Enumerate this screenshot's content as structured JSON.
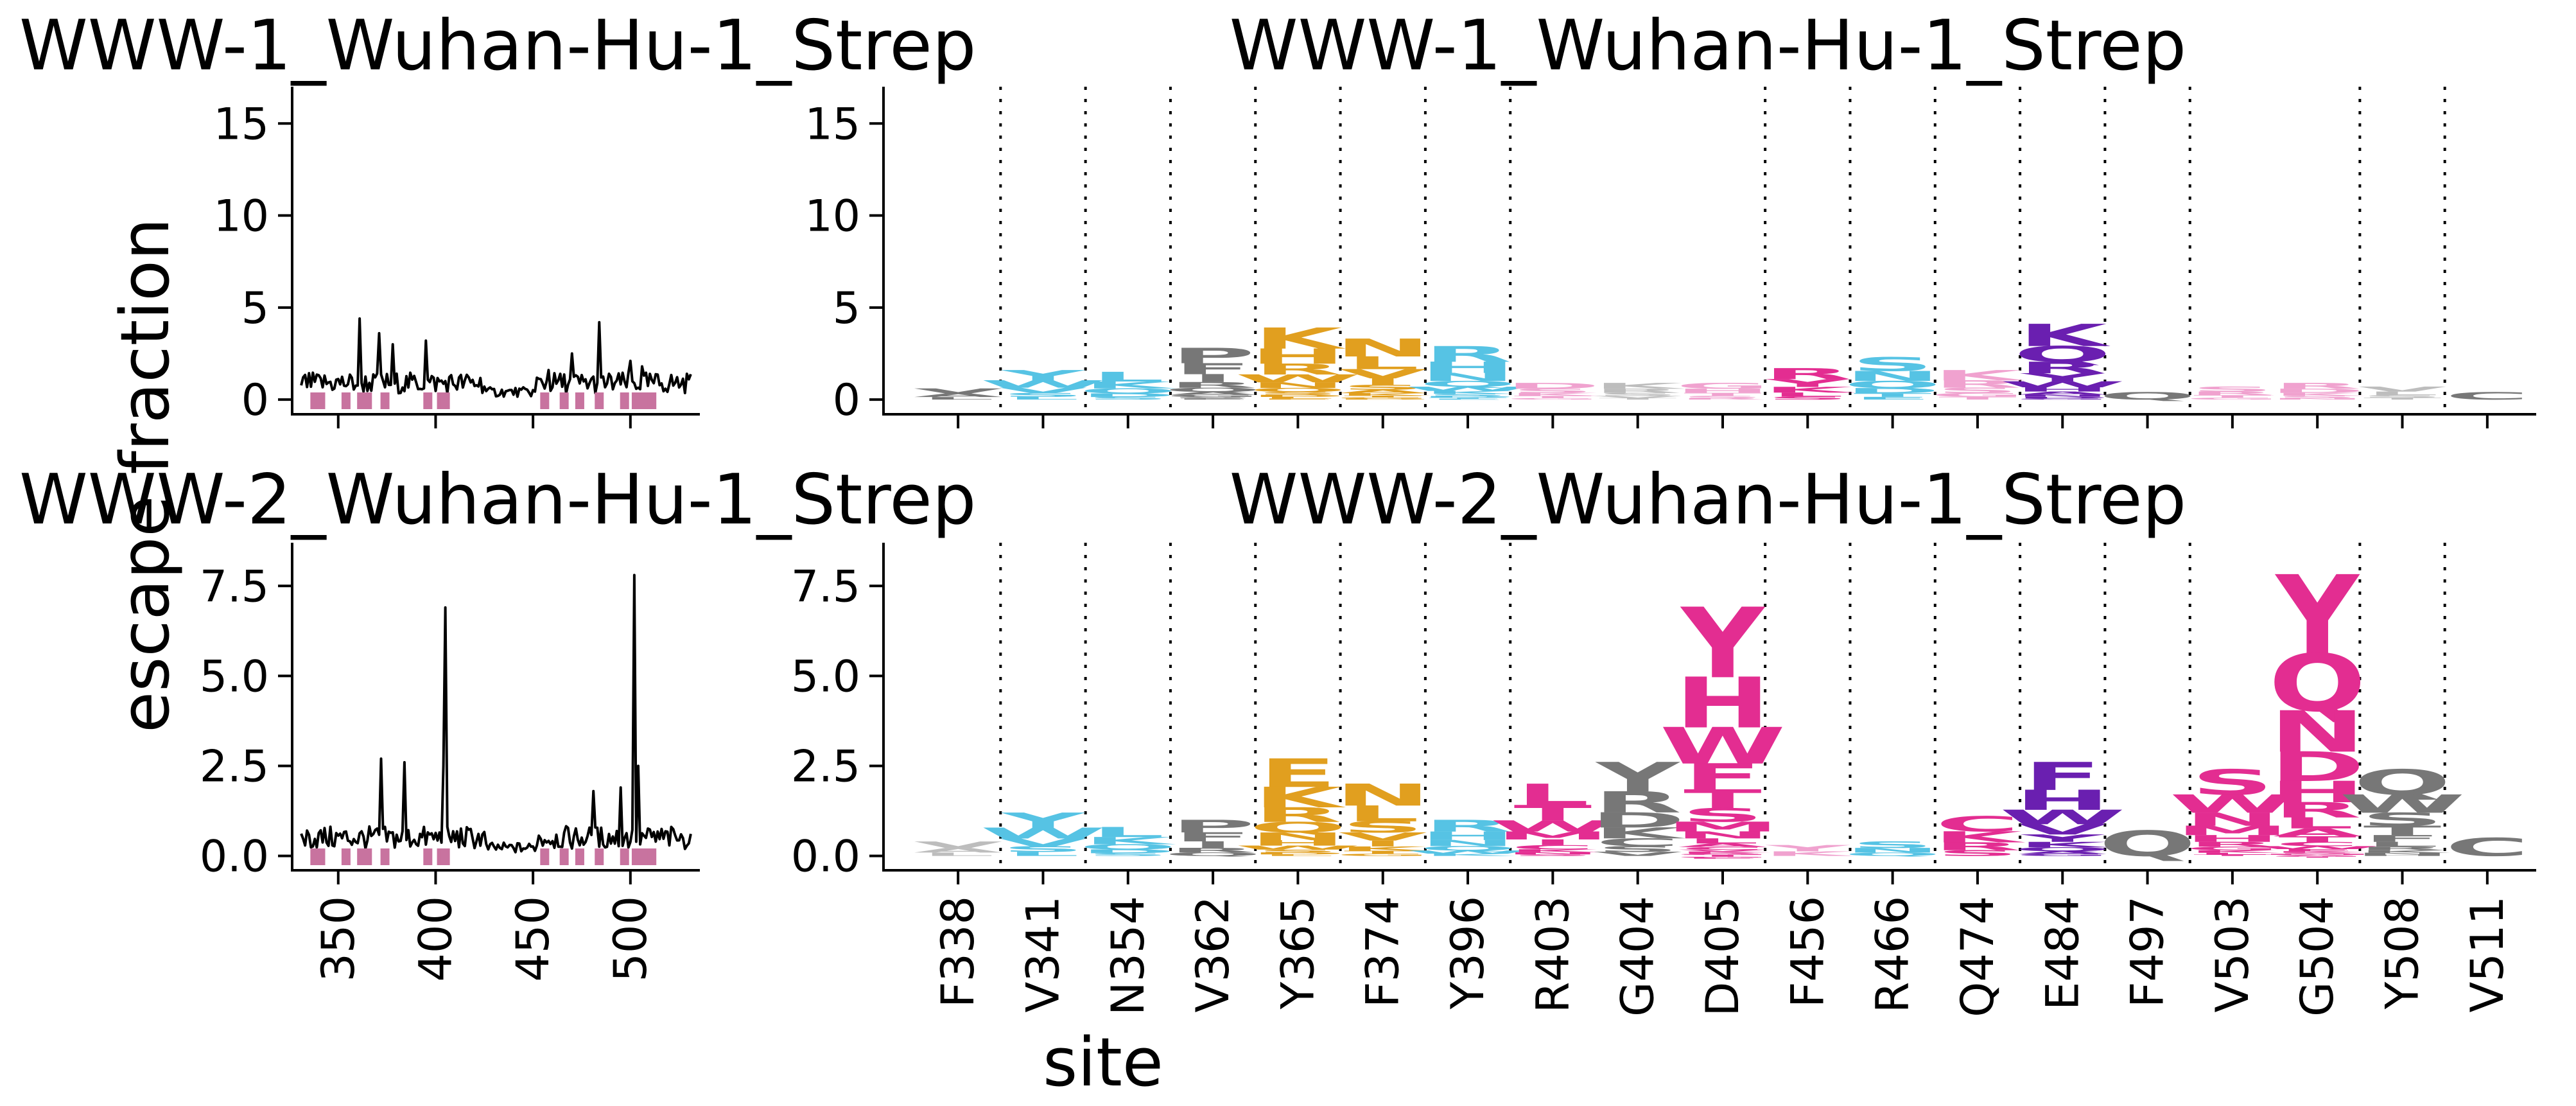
{
  "figure": {
    "ylabel": "escape fraction",
    "xlabel": "site"
  },
  "colors": {
    "line": "#000000",
    "site_marker": "#c8739f",
    "dark_gray": "#777777",
    "light_gray": "#bdbdbd",
    "cyan": "#56c3e4",
    "orange": "#e19f1f",
    "magenta": "#e32d91",
    "purple": "#6a1fb0",
    "pink_light": "#f0a2cf"
  },
  "chart_data": [
    {
      "type": "line",
      "title": "WWW-1_Wuhan-Hu-1_Strep",
      "ylim": [
        -0.8,
        17
      ],
      "yticks": [
        0,
        5,
        10,
        15
      ],
      "xlim": [
        327,
        535
      ],
      "xticks": [
        350,
        400,
        450,
        500
      ],
      "peaks": [
        [
          361,
          4.4
        ],
        [
          371,
          3.6
        ],
        [
          378,
          3.0
        ],
        [
          395,
          3.2
        ],
        [
          458,
          1.6
        ],
        [
          470,
          2.5
        ],
        [
          484,
          4.2
        ],
        [
          500,
          2.1
        ],
        [
          506,
          1.8
        ],
        [
          530,
          1.1
        ]
      ],
      "baseline": 0.9,
      "marked_sites": [
        338,
        341,
        354,
        362,
        365,
        374,
        396,
        403,
        404,
        405,
        456,
        466,
        474,
        484,
        497,
        503,
        504,
        508,
        511
      ]
    },
    {
      "type": "line",
      "title": "WWW-2_Wuhan-Hu-1_Strep",
      "ylim": [
        -0.4,
        8.7
      ],
      "yticks": [
        0,
        2.5,
        5,
        7.5
      ],
      "ytick_labels": [
        "0.0",
        "2.5",
        "5.0",
        "7.5"
      ],
      "xlim": [
        327,
        535
      ],
      "xticks": [
        350,
        400,
        450,
        500
      ],
      "peaks": [
        [
          372,
          2.7
        ],
        [
          384,
          2.6
        ],
        [
          404,
          2.5
        ],
        [
          405,
          6.9
        ],
        [
          481,
          1.8
        ],
        [
          495,
          1.9
        ],
        [
          502,
          7.8
        ],
        [
          504,
          2.5
        ],
        [
          526,
          0.6
        ]
      ],
      "baseline": 0.5,
      "marked_sites": [
        338,
        341,
        354,
        362,
        365,
        374,
        396,
        403,
        404,
        405,
        456,
        466,
        474,
        484,
        497,
        503,
        504,
        508,
        511
      ]
    },
    {
      "type": "logo",
      "title": "WWW-1_Wuhan-Hu-1_Strep",
      "ylim": [
        -0.8,
        17
      ],
      "yticks": [
        0,
        5,
        10,
        15
      ],
      "sites": [
        {
          "label": "F338",
          "height": 0.6,
          "letters": "VAL",
          "color": "dark_gray",
          "group_end": true
        },
        {
          "label": "V341",
          "height": 1.6,
          "letters": "YWVSL",
          "color": "cyan",
          "group_end": true
        },
        {
          "label": "N354",
          "height": 1.5,
          "letters": "LKQDS",
          "color": "cyan",
          "group_end": true
        },
        {
          "label": "V362",
          "height": 2.8,
          "letters": "PFIRQAGSE",
          "color": "dark_gray",
          "group_end": true
        },
        {
          "label": "Y365",
          "height": 3.9,
          "letters": "KHRWNQSDLE",
          "color": "orange",
          "group_end": true
        },
        {
          "label": "F374",
          "height": 3.3,
          "letters": "NLVISAKTGD",
          "color": "orange",
          "group_end": true
        },
        {
          "label": "Y396",
          "height": 2.9,
          "letters": "RHNQWKSDTE",
          "color": "cyan",
          "group_end": true
        },
        {
          "label": "R403",
          "height": 0.9,
          "letters": "DSKTG",
          "color": "pink_light",
          "group_end": false
        },
        {
          "label": "G404",
          "height": 0.9,
          "letters": "KRSVT",
          "color": "light_gray",
          "group_end": false
        },
        {
          "label": "D405",
          "height": 0.9,
          "letters": "GHTSR",
          "color": "pink_light",
          "group_end": true
        },
        {
          "label": "F456",
          "height": 1.7,
          "letters": "RYKLS",
          "color": "magenta",
          "group_end": true
        },
        {
          "label": "R466",
          "height": 2.3,
          "letters": "SNQDTE",
          "color": "cyan",
          "group_end": true
        },
        {
          "label": "Q474",
          "height": 1.6,
          "letters": "KRSGT",
          "color": "pink_light",
          "group_end": true
        },
        {
          "label": "E484",
          "height": 4.1,
          "letters": "KQRYWHANDG",
          "color": "purple",
          "group_end": true
        },
        {
          "label": "F497",
          "height": 0.4,
          "letters": "Q",
          "color": "dark_gray",
          "group_end": true
        },
        {
          "label": "V503",
          "height": 0.7,
          "letters": "SRTG",
          "color": "pink_light",
          "group_end": false
        },
        {
          "label": "G504",
          "height": 0.9,
          "letters": "RDKSN",
          "color": "pink_light",
          "group_end": true
        },
        {
          "label": "Y508",
          "height": 0.7,
          "letters": "VLST",
          "color": "light_gray",
          "group_end": true
        },
        {
          "label": "V511",
          "height": 0.4,
          "letters": "C",
          "color": "dark_gray",
          "group_end": false
        }
      ]
    },
    {
      "type": "logo",
      "title": "WWW-2_Wuhan-Hu-1_Strep",
      "ylim": [
        -0.4,
        8.7
      ],
      "yticks": [
        0,
        2.5,
        5,
        7.5
      ],
      "ytick_labels": [
        "0.0",
        "2.5",
        "5.0",
        "7.5"
      ],
      "sites": [
        {
          "label": "F338",
          "height": 0.4,
          "letters": "VAL",
          "color": "light_gray",
          "group_end": true
        },
        {
          "label": "V341",
          "height": 1.2,
          "letters": "YWVSL",
          "color": "cyan",
          "group_end": true
        },
        {
          "label": "N354",
          "height": 0.8,
          "letters": "LKQDS",
          "color": "cyan",
          "group_end": true
        },
        {
          "label": "V362",
          "height": 1.0,
          "letters": "PFIRQ",
          "color": "dark_gray",
          "group_end": true
        },
        {
          "label": "Y365",
          "height": 2.7,
          "letters": "EKRQNHWSDL",
          "color": "orange",
          "group_end": true
        },
        {
          "label": "F374",
          "height": 2.0,
          "letters": "NLSVIKTG",
          "color": "orange",
          "group_end": true
        },
        {
          "label": "Y396",
          "height": 1.0,
          "letters": "RHNQWK",
          "color": "cyan",
          "group_end": true
        },
        {
          "label": "R403",
          "height": 2.0,
          "letters": "LTWMICKNS",
          "color": "magenta",
          "group_end": false
        },
        {
          "label": "G404",
          "height": 2.6,
          "letters": "YRDKCSV",
          "color": "dark_gray",
          "group_end": false
        },
        {
          "label": "D405",
          "height": 6.9,
          "letters": "YHWFTSMNLACVKRGTIGE",
          "color": "magenta",
          "group_end": true
        },
        {
          "label": "F456",
          "height": 0.3,
          "letters": "YK",
          "color": "pink_light",
          "group_end": true
        },
        {
          "label": "R466",
          "height": 0.4,
          "letters": "SNQ",
          "color": "cyan",
          "group_end": true
        },
        {
          "label": "Q474",
          "height": 1.1,
          "letters": "CKRS",
          "color": "magenta",
          "group_end": true
        },
        {
          "label": "E484",
          "height": 2.6,
          "letters": "FHWVYKQAG",
          "color": "purple",
          "group_end": true
        },
        {
          "label": "F497",
          "height": 0.7,
          "letters": "Q",
          "color": "dark_gray",
          "group_end": true
        },
        {
          "label": "V503",
          "height": 2.4,
          "letters": "SWNMHRGKLT",
          "color": "magenta",
          "group_end": false
        },
        {
          "label": "G504",
          "height": 7.8,
          "letters": "YQNDHRLATCWEKSMVGI",
          "color": "magenta",
          "group_end": true
        },
        {
          "label": "Y508",
          "height": 2.4,
          "letters": "QWSTFLRKNH",
          "color": "dark_gray",
          "group_end": true
        },
        {
          "label": "V511",
          "height": 0.5,
          "letters": "C",
          "color": "dark_gray",
          "group_end": false
        }
      ]
    }
  ]
}
